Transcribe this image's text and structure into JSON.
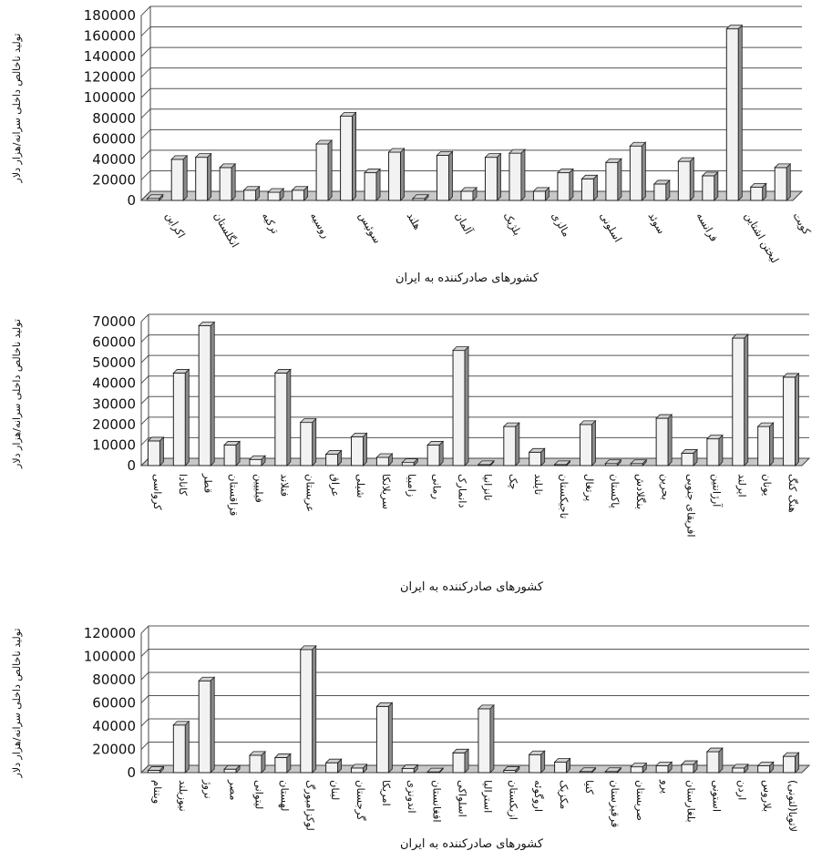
{
  "chart_data": [
    {
      "type": "bar",
      "title": "",
      "xlabel": "کشورهای صادرکننده به ایران",
      "ylabel": "تولید ناخالص داخلی سرانه/هزار دلار",
      "ylim": [
        0,
        180000
      ],
      "yticks": [
        0,
        20000,
        40000,
        60000,
        80000,
        100000,
        120000,
        140000,
        160000,
        180000
      ],
      "grid": true,
      "bar_style": "3d",
      "labeled_every": 2,
      "categories": [
        "اکراین",
        "",
        "انگلستان",
        "",
        "ترکیه",
        "",
        "روسیه",
        "",
        "سوئیس",
        "",
        "هلند",
        "",
        "آلمان",
        "",
        "بلژیک",
        "",
        "مالزی",
        "",
        "اسلونی",
        "",
        "سوئد",
        "",
        "فرانسه",
        "",
        "لیختن اشتاین",
        "",
        "کویت"
      ],
      "values": [
        2000,
        40000,
        42000,
        32000,
        10000,
        8000,
        10000,
        55000,
        82000,
        27000,
        47000,
        2000,
        44000,
        9000,
        42000,
        46000,
        9000,
        27000,
        21000,
        37000,
        53000,
        16000,
        38000,
        24000,
        167000,
        13000,
        32000
      ]
    },
    {
      "type": "bar",
      "title": "",
      "xlabel": "کشورهای صادرکننده به ایران",
      "ylabel": "تولید ناخالص داخلی سرانه/هزار دلار",
      "ylim": [
        0,
        70000
      ],
      "yticks": [
        0,
        10000,
        20000,
        30000,
        40000,
        50000,
        60000,
        70000
      ],
      "grid": true,
      "bar_style": "3d",
      "categories": [
        "کرواسی",
        "کانادا",
        "قطر",
        "قزاقستان",
        "فیلیپین",
        "فنلاند",
        "عربستان",
        "عراق",
        "شیلی",
        "سریلانکا",
        "زامبیا",
        "رمانی",
        "دانمارک",
        "تانزانیا",
        "چک",
        "تایلند",
        "تاجیکستان",
        "پرتغال",
        "پاکستان",
        "بنگلادش",
        "بحرین",
        "افریقای جنوبی",
        "آرژانتین",
        "ایرلند",
        "یونان",
        "هنگ کنگ"
      ],
      "values": [
        12000,
        45000,
        68000,
        10000,
        3000,
        45000,
        21000,
        5500,
        14000,
        4000,
        1500,
        10000,
        56000,
        500,
        19000,
        6500,
        500,
        20000,
        1000,
        1000,
        23000,
        6000,
        13000,
        62000,
        19000,
        43000
      ]
    },
    {
      "type": "bar",
      "title": "",
      "xlabel": "کشورهای صادرکننده به ایران",
      "ylabel": "تولید ناخالص داخلی سرانه/هزار دلار",
      "ylim": [
        0,
        120000
      ],
      "yticks": [
        0,
        20000,
        40000,
        60000,
        80000,
        100000,
        120000
      ],
      "grid": true,
      "bar_style": "3d",
      "categories": [
        "ویتنام",
        "نیوزیلند",
        "نروژ",
        "مصر",
        "لیتوانی",
        "لهستان",
        "لوکزامبورگ",
        "لبنان",
        "گرجستان",
        "امریکا",
        "اندونزی",
        "افغانستان",
        "اسلواکی",
        "استرالیا",
        "ازبکستان",
        "اروگوئه",
        "مکزیک",
        "کنیا",
        "قرقیزستان",
        "صربستان",
        "پرو",
        "بلغارستان",
        "استونی",
        "اردن",
        "بلاروس",
        "لاتویا(لتونی)"
      ],
      "values": [
        2000,
        41000,
        79000,
        3000,
        15000,
        13000,
        106000,
        8500,
        4000,
        57000,
        3500,
        700,
        17000,
        55000,
        2000,
        15500,
        9000,
        1000,
        1000,
        5000,
        6000,
        7000,
        18000,
        4000,
        6000,
        14000
      ]
    }
  ]
}
